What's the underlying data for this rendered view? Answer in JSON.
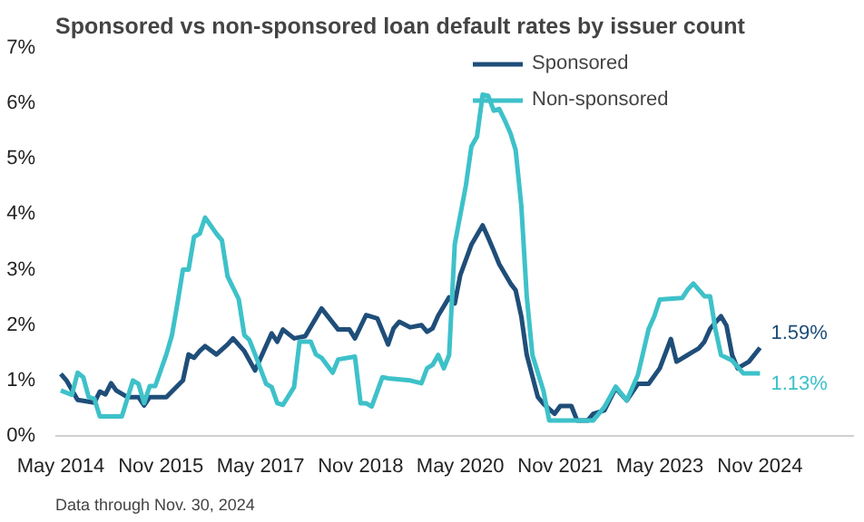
{
  "chart_data": {
    "type": "line",
    "title": "Sponsored vs non-sponsored  loan default rates by issuer count",
    "series": [
      {
        "name": "Sponsored",
        "color": "#1f4e79",
        "x": [
          "2014-05",
          "2014-06",
          "2014-08",
          "2014-11",
          "2014-12",
          "2015-01",
          "2015-02",
          "2015-03",
          "2015-05",
          "2015-07",
          "2015-08",
          "2015-09",
          "2015-12",
          "2016-03",
          "2016-04",
          "2016-05",
          "2016-06",
          "2016-07",
          "2016-09",
          "2016-11",
          "2016-12",
          "2017-02",
          "2017-04",
          "2017-07",
          "2017-08",
          "2017-09",
          "2017-11",
          "2018-01",
          "2018-04",
          "2018-07",
          "2018-09",
          "2018-10",
          "2018-12",
          "2019-02",
          "2019-04",
          "2019-05",
          "2019-06",
          "2019-08",
          "2019-10",
          "2019-11",
          "2019-12",
          "2020-01",
          "2020-03",
          "2020-04",
          "2020-05",
          "2020-07",
          "2020-09",
          "2020-10",
          "2020-11",
          "2020-12",
          "2021-02",
          "2021-03",
          "2021-04",
          "2021-05",
          "2021-07",
          "2021-08",
          "2021-10",
          "2021-11",
          "2022-01",
          "2022-02",
          "2022-04",
          "2022-05",
          "2022-07",
          "2022-09",
          "2022-11",
          "2023-01",
          "2023-03",
          "2023-05",
          "2023-07",
          "2023-08",
          "2023-10",
          "2023-12",
          "2024-01",
          "2024-02",
          "2024-04",
          "2024-05",
          "2024-06",
          "2024-07",
          "2024-09",
          "2024-11"
        ],
        "values": [
          1.12,
          1.0,
          0.65,
          0.6,
          0.8,
          0.75,
          0.95,
          0.82,
          0.7,
          0.7,
          0.55,
          0.7,
          0.7,
          1.0,
          1.47,
          1.41,
          1.53,
          1.62,
          1.47,
          1.65,
          1.76,
          1.53,
          1.18,
          1.85,
          1.7,
          1.92,
          1.76,
          1.8,
          2.3,
          1.92,
          1.92,
          1.76,
          2.18,
          2.12,
          1.65,
          1.94,
          2.06,
          1.96,
          2.0,
          1.88,
          1.94,
          2.17,
          2.5,
          2.39,
          2.9,
          3.45,
          3.8,
          3.58,
          3.34,
          3.1,
          2.75,
          2.63,
          2.16,
          1.46,
          0.7,
          0.58,
          0.4,
          0.54,
          0.54,
          0.28,
          0.28,
          0.4,
          0.46,
          0.86,
          0.64,
          0.94,
          0.94,
          1.22,
          1.75,
          1.34,
          1.46,
          1.58,
          1.7,
          1.93,
          2.16,
          1.99,
          1.46,
          1.22,
          1.34,
          1.59
        ]
      },
      {
        "name": "Non-sponsored",
        "color": "#3ec1c9",
        "x": [
          "2014-05",
          "2014-07",
          "2014-08",
          "2014-09",
          "2014-10",
          "2014-11",
          "2014-12",
          "2015-04",
          "2015-06",
          "2015-07",
          "2015-08",
          "2015-09",
          "2015-10",
          "2015-12",
          "2016-01",
          "2016-02",
          "2016-03",
          "2016-04",
          "2016-05",
          "2016-06",
          "2016-07",
          "2016-09",
          "2016-10",
          "2016-11",
          "2017-01",
          "2017-02",
          "2017-03",
          "2017-04",
          "2017-06",
          "2017-07",
          "2017-08",
          "2017-09",
          "2017-11",
          "2017-12",
          "2018-02",
          "2018-03",
          "2018-04",
          "2018-06",
          "2018-07",
          "2018-10",
          "2018-11",
          "2018-12",
          "2019-01",
          "2019-03",
          "2019-04",
          "2019-08",
          "2019-10",
          "2019-11",
          "2019-12",
          "2020-01",
          "2020-02",
          "2020-03",
          "2020-04",
          "2020-06",
          "2020-07",
          "2020-08",
          "2020-09",
          "2020-10",
          "2020-11",
          "2020-12",
          "2021-01",
          "2021-02",
          "2021-03",
          "2021-04",
          "2021-05",
          "2021-06",
          "2021-08",
          "2021-09",
          "2022-05",
          "2022-07",
          "2022-09",
          "2022-11",
          "2023-01",
          "2023-03",
          "2023-04",
          "2023-05",
          "2023-09",
          "2023-10",
          "2023-11",
          "2024-01",
          "2024-02",
          "2024-03",
          "2024-04",
          "2024-06",
          "2024-08",
          "2024-11"
        ],
        "values": [
          0.82,
          0.74,
          1.14,
          1.06,
          0.7,
          0.67,
          0.35,
          0.35,
          1.0,
          0.94,
          0.59,
          0.9,
          0.9,
          1.47,
          1.82,
          2.41,
          3.0,
          3.0,
          3.59,
          3.65,
          3.94,
          3.65,
          3.53,
          2.88,
          2.47,
          1.82,
          1.73,
          1.47,
          0.94,
          0.88,
          0.59,
          0.56,
          0.88,
          1.7,
          1.7,
          1.47,
          1.41,
          1.14,
          1.38,
          1.43,
          0.59,
          0.59,
          0.53,
          1.06,
          1.04,
          1.0,
          0.95,
          1.22,
          1.28,
          1.46,
          1.22,
          1.46,
          3.46,
          4.52,
          5.22,
          5.4,
          6.16,
          6.14,
          5.87,
          5.9,
          5.69,
          5.46,
          5.16,
          4.16,
          2.52,
          1.46,
          0.81,
          0.28,
          0.28,
          0.52,
          0.89,
          0.64,
          1.1,
          1.93,
          2.16,
          2.46,
          2.49,
          2.64,
          2.75,
          2.52,
          2.52,
          1.93,
          1.46,
          1.36,
          1.13,
          1.13
        ]
      }
    ],
    "xlim": [
      "2014-04",
      "2026-04"
    ],
    "xticks": [
      {
        "value": "2014-05",
        "label": "May 2014"
      },
      {
        "value": "2015-11",
        "label": "Nov 2015"
      },
      {
        "value": "2017-05",
        "label": "May 2017"
      },
      {
        "value": "2018-11",
        "label": "Nov 2018"
      },
      {
        "value": "2020-05",
        "label": "May 2020"
      },
      {
        "value": "2021-11",
        "label": "Nov 2021"
      },
      {
        "value": "2023-05",
        "label": "May 2023"
      },
      {
        "value": "2024-11",
        "label": "Nov 2024"
      }
    ],
    "ylim": [
      0,
      7
    ],
    "yticks": [
      {
        "value": 0,
        "label": "0%"
      },
      {
        "value": 1,
        "label": "1%"
      },
      {
        "value": 2,
        "label": "2%"
      },
      {
        "value": 3,
        "label": "3%"
      },
      {
        "value": 4,
        "label": "4%"
      },
      {
        "value": 5,
        "label": "5%"
      },
      {
        "value": 6,
        "label": "6%"
      },
      {
        "value": 7,
        "label": "7%"
      }
    ],
    "annotations": [
      {
        "text": "1.59%",
        "x": "2024-11",
        "y": 1.59
      },
      {
        "text": "1.13%",
        "x": "2024-11",
        "y": 1.13
      },
      "Data through Nov. 30, 2024"
    ],
    "legend": "top right",
    "grid": false,
    "line_style": "solid",
    "marker": "none"
  }
}
